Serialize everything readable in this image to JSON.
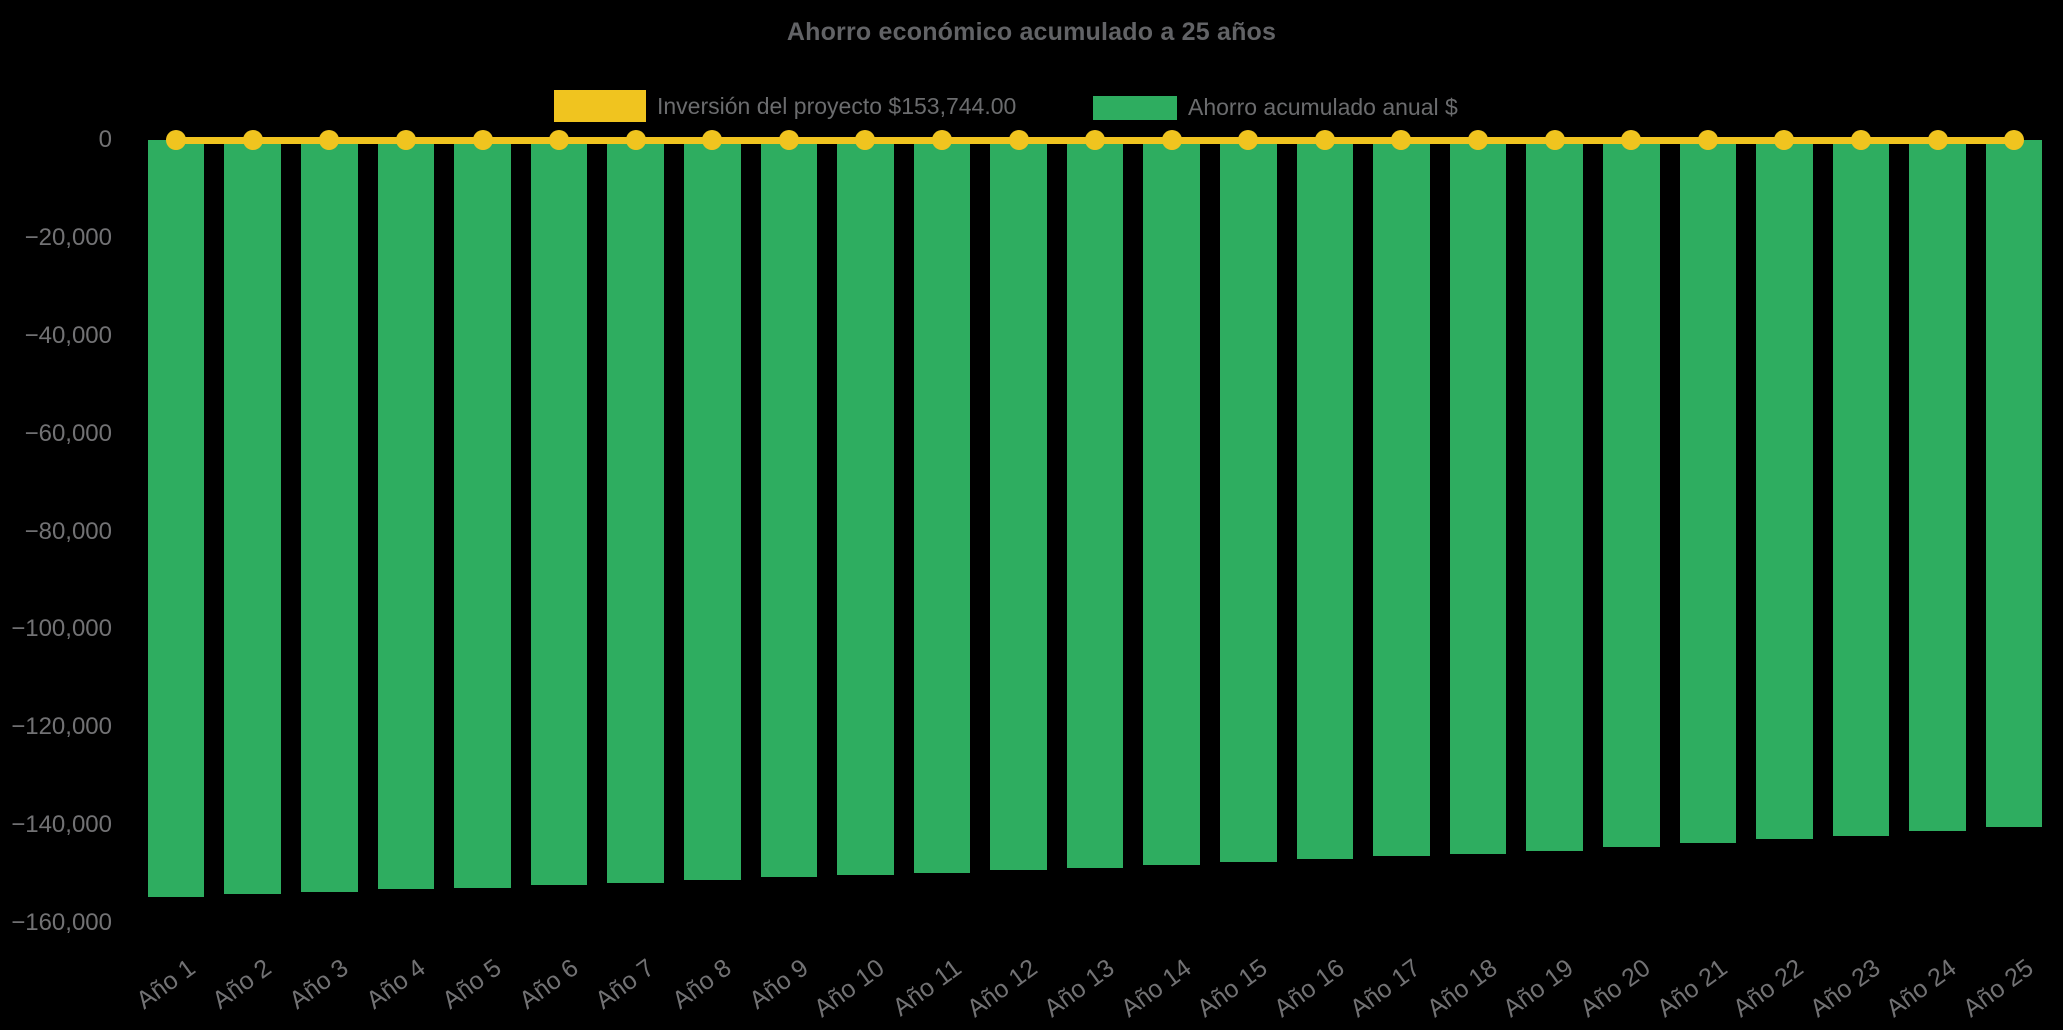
{
  "chart_data": {
    "type": "bar",
    "title": "Ahorro económico acumulado a 25 años",
    "background": "#000000",
    "text_color": "#6B6C6E",
    "grid": false,
    "legend_position": "top",
    "xlabel": "",
    "ylabel": "",
    "ylim": [
      -160000,
      0
    ],
    "y_ticks": [
      0,
      -20000,
      -40000,
      -60000,
      -80000,
      -100000,
      -120000,
      -140000,
      -160000
    ],
    "y_tick_labels": [
      "0",
      "−20,000",
      "−40,000",
      "−60,000",
      "−80,000",
      "−100,000",
      "−120,000",
      "−140,000",
      "−160,000"
    ],
    "categories": [
      "Año 1",
      "Año 2",
      "Año 3",
      "Año 4",
      "Año 5",
      "Año 6",
      "Año 7",
      "Año 8",
      "Año 9",
      "Año 10",
      "Año 11",
      "Año 12",
      "Año 13",
      "Año 14",
      "Año 15",
      "Año 16",
      "Año 17",
      "Año 18",
      "Año 19",
      "Año 20",
      "Año 21",
      "Año 22",
      "Año 23",
      "Año 24",
      "Año 25"
    ],
    "series": [
      {
        "name": "Inversión del proyecto $153,744.00",
        "type": "line",
        "color": "#F0C41F",
        "marker": "circle",
        "values": [
          0,
          0,
          0,
          0,
          0,
          0,
          0,
          0,
          0,
          0,
          0,
          0,
          0,
          0,
          0,
          0,
          0,
          0,
          0,
          0,
          0,
          0,
          0,
          0,
          0
        ]
      },
      {
        "name": "Ahorro acumulado anual $",
        "type": "bar",
        "color": "#2EAD60",
        "values": [
          -154600,
          -154100,
          -153600,
          -153100,
          -152800,
          -152200,
          -151800,
          -151300,
          -150700,
          -150200,
          -149800,
          -149200,
          -148700,
          -148100,
          -147500,
          -147000,
          -146300,
          -145800,
          -145200,
          -144500,
          -143700,
          -142800,
          -142200,
          -141300,
          -140400
        ]
      }
    ]
  }
}
